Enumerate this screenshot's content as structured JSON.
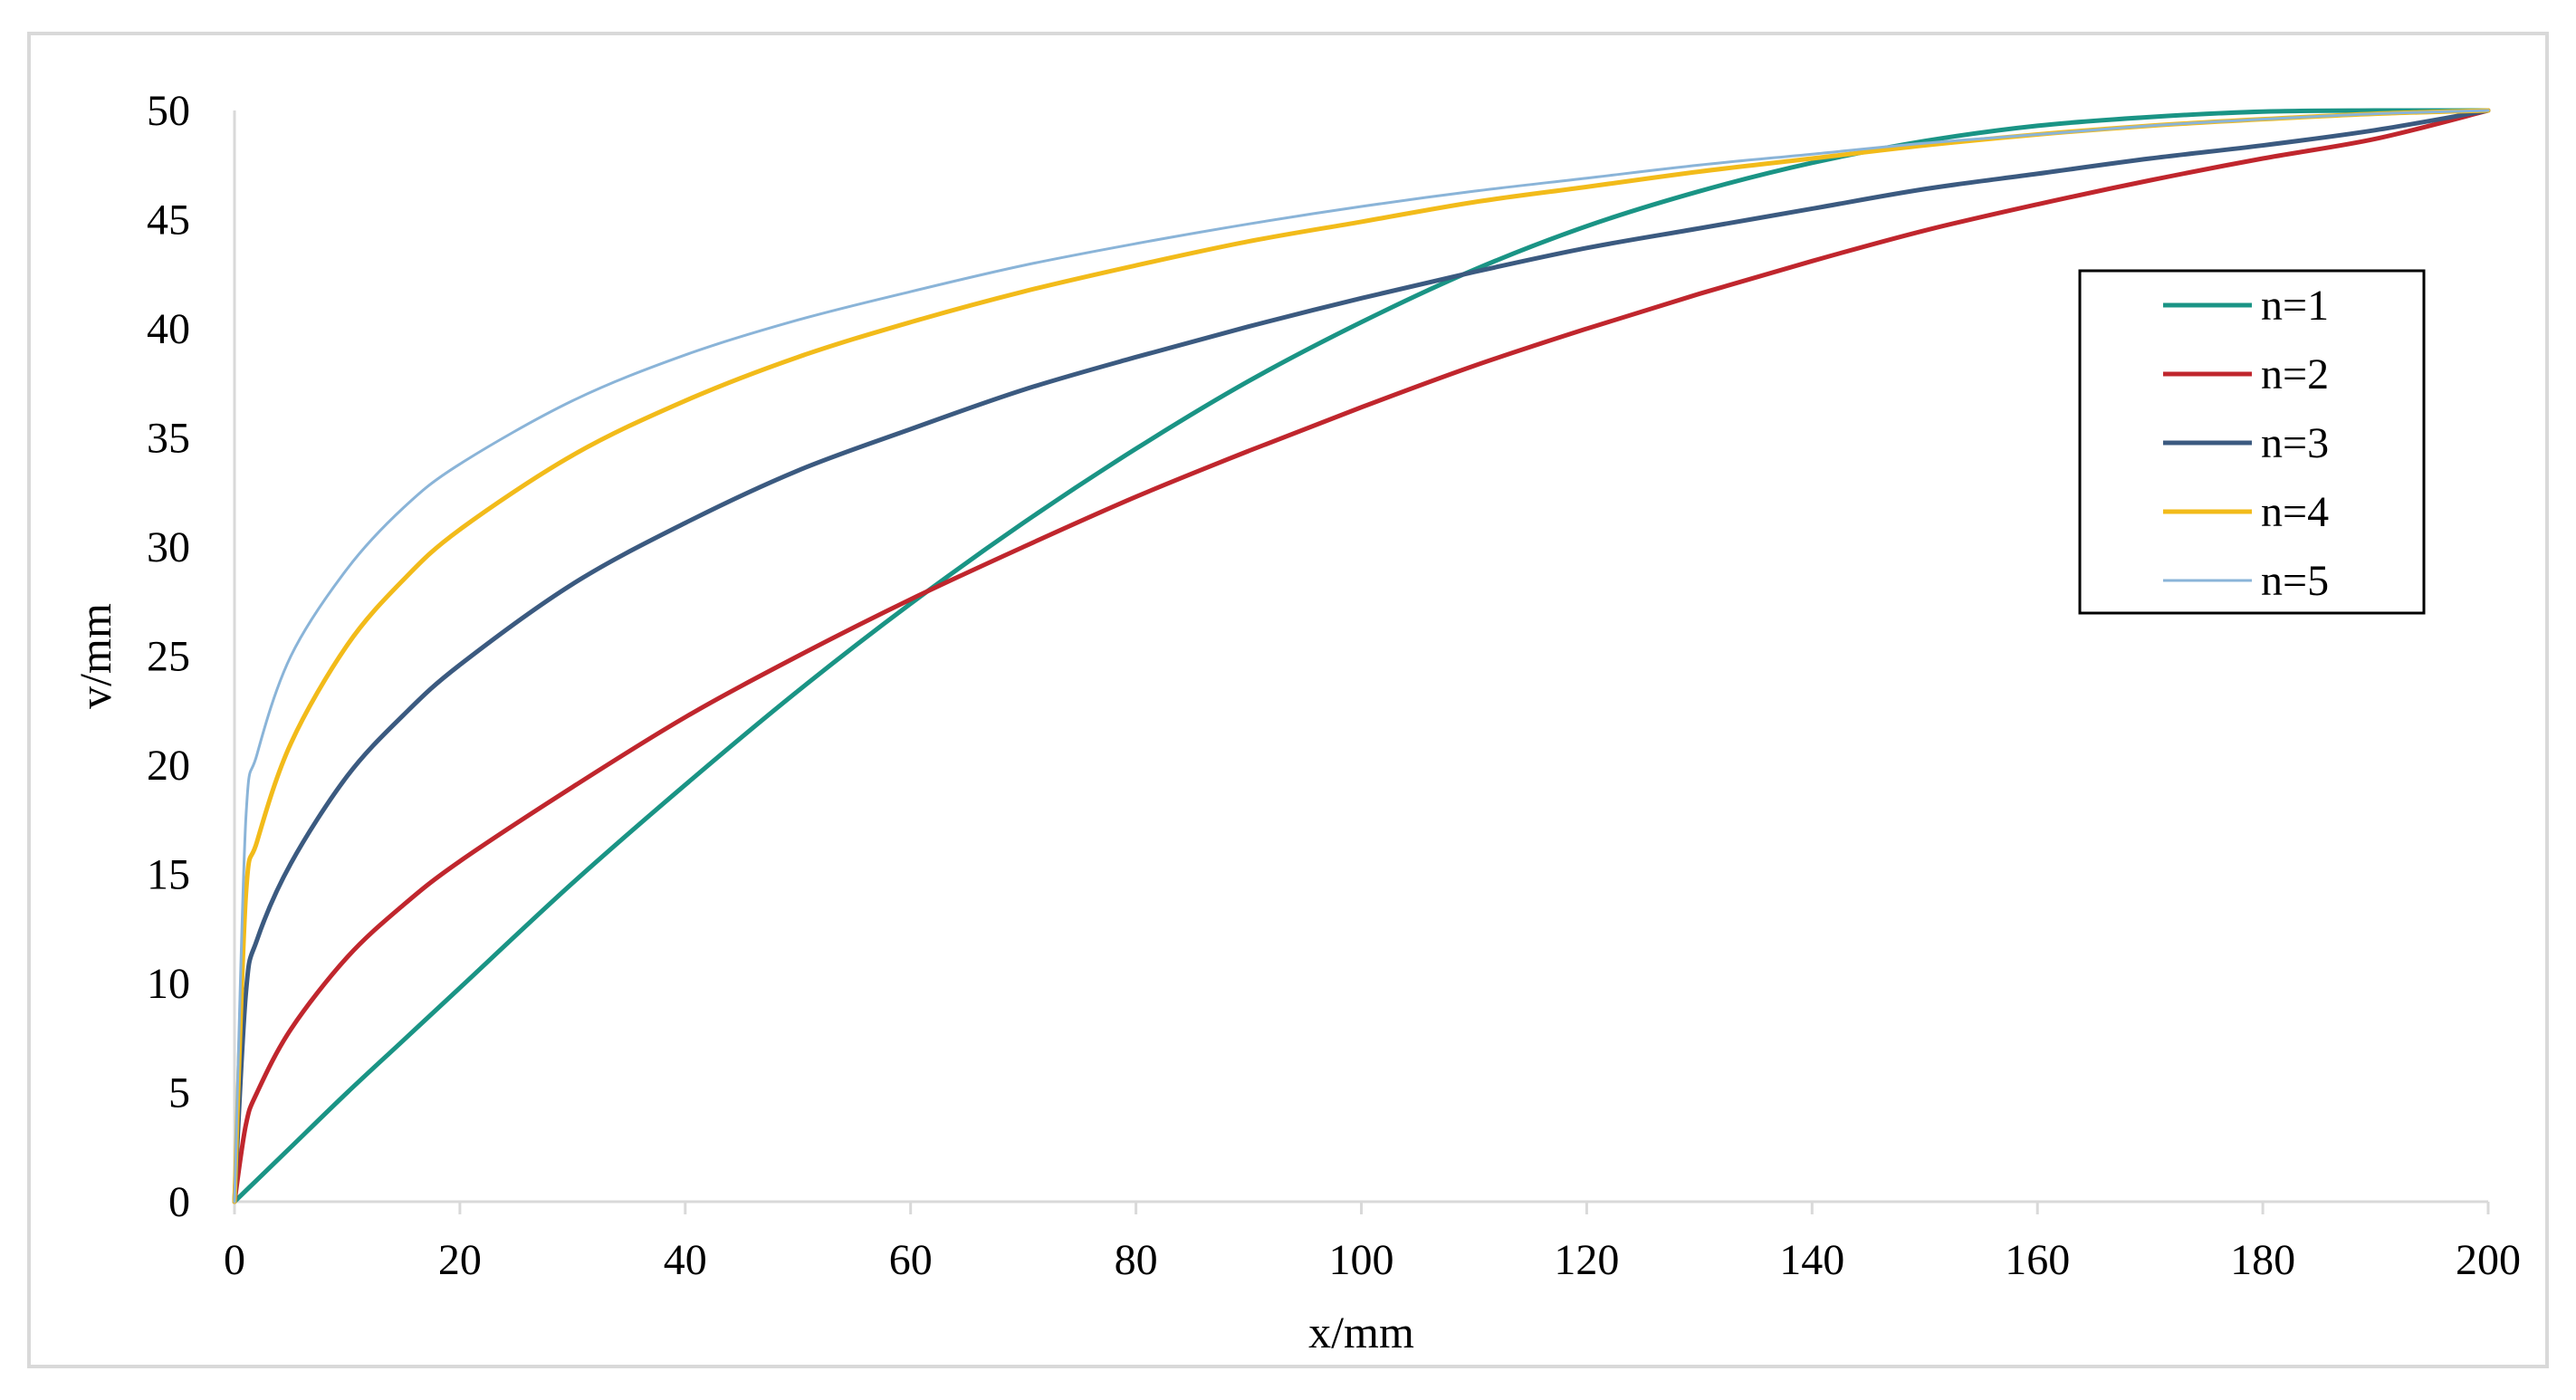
{
  "chart_data": {
    "type": "line",
    "title": "",
    "xlabel": "x/mm",
    "ylabel": "v/mm",
    "xlim": [
      0,
      200
    ],
    "ylim": [
      0,
      50
    ],
    "x_ticks": [
      0,
      20,
      40,
      60,
      80,
      100,
      120,
      140,
      160,
      180,
      200
    ],
    "y_ticks": [
      0,
      5,
      10,
      15,
      20,
      25,
      30,
      35,
      40,
      45,
      50
    ],
    "grid": false,
    "legend_position": "right",
    "x": [
      0,
      1,
      2,
      5,
      10,
      15,
      20,
      30,
      40,
      50,
      60,
      70,
      80,
      90,
      100,
      110,
      120,
      130,
      140,
      150,
      160,
      170,
      180,
      190,
      200
    ],
    "series": [
      {
        "name": "n=1",
        "color": "#1a9485",
        "stroke_width": 5,
        "values": [
          0,
          0.5,
          1.0,
          2.5,
          5.0,
          7.4,
          9.8,
          14.6,
          19.1,
          23.4,
          27.4,
          31.1,
          34.5,
          37.6,
          40.3,
          42.7,
          44.7,
          46.3,
          47.6,
          48.6,
          49.3,
          49.7,
          49.95,
          50,
          50
        ]
      },
      {
        "name": "n=2",
        "color": "#c0262d",
        "stroke_width": 5,
        "values": [
          0,
          3.5,
          5.0,
          7.9,
          11.2,
          13.6,
          15.6,
          19.0,
          22.2,
          25.0,
          27.6,
          30.0,
          32.3,
          34.4,
          36.4,
          38.3,
          40.0,
          41.6,
          43.1,
          44.5,
          45.7,
          46.8,
          47.8,
          48.7,
          50
        ]
      },
      {
        "name": "n=3",
        "color": "#3b5a80",
        "stroke_width": 5,
        "values": [
          0,
          9.5,
          12.0,
          15.5,
          19.5,
          22.3,
          24.6,
          28.3,
          31.1,
          33.5,
          35.4,
          37.2,
          38.7,
          40.1,
          41.4,
          42.6,
          43.7,
          44.6,
          45.5,
          46.4,
          47.1,
          47.8,
          48.4,
          49.1,
          50
        ]
      },
      {
        "name": "n=4",
        "color": "#f2bb1a",
        "stroke_width": 5,
        "values": [
          0,
          14.0,
          16.5,
          21.0,
          25.5,
          28.5,
          30.8,
          34.2,
          36.7,
          38.7,
          40.3,
          41.7,
          42.9,
          44.0,
          44.9,
          45.8,
          46.5,
          47.2,
          47.8,
          48.4,
          48.9,
          49.3,
          49.6,
          49.85,
          50
        ]
      },
      {
        "name": "n=5",
        "color": "#8ab4d8",
        "stroke_width": 3,
        "values": [
          0,
          17.5,
          20.5,
          25.0,
          29.0,
          31.8,
          33.8,
          36.7,
          38.8,
          40.4,
          41.7,
          42.9,
          43.9,
          44.8,
          45.6,
          46.3,
          46.9,
          47.5,
          48.0,
          48.5,
          48.9,
          49.3,
          49.6,
          49.85,
          50
        ]
      }
    ]
  }
}
